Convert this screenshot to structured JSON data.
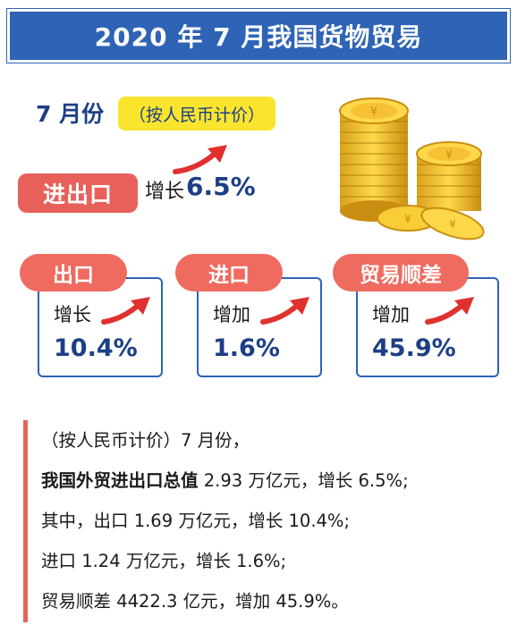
{
  "banner": {
    "title": "2020 年 7 月我国货物贸易"
  },
  "period": {
    "month": "7 月份",
    "unit_note": "（按人民币计价）"
  },
  "total": {
    "label": "进出口",
    "verb": "增长",
    "value": "6.5%"
  },
  "cards": [
    {
      "label": "出口",
      "verb": "增长",
      "value": "10.4%"
    },
    {
      "label": "进口",
      "verb": "增加",
      "value": "1.6%"
    },
    {
      "label": "贸易顺差",
      "verb": "增加",
      "value": "45.9%"
    }
  ],
  "summary": {
    "line1": "（按人民币计价）7 月份，",
    "line2_bold": "我国外贸进出口总值",
    "line2_rest": " 2.93 万亿元，增长 6.5%;",
    "line3": "其中，出口 1.69 万亿元，增长 10.4%;",
    "line4": "进口 1.24 万亿元，增长 1.6%;",
    "line5": "贸易顺差 4422.3 亿元，增加 45.9%。"
  },
  "colors": {
    "blue": "#2e63b5",
    "navy": "#1c3f86",
    "coral": "#e8605a",
    "yellow": "#f9e42e",
    "gold": "#f0c12b"
  },
  "icons": [
    "up-trend-arrow-icon",
    "gold-coin-stack-icon"
  ]
}
